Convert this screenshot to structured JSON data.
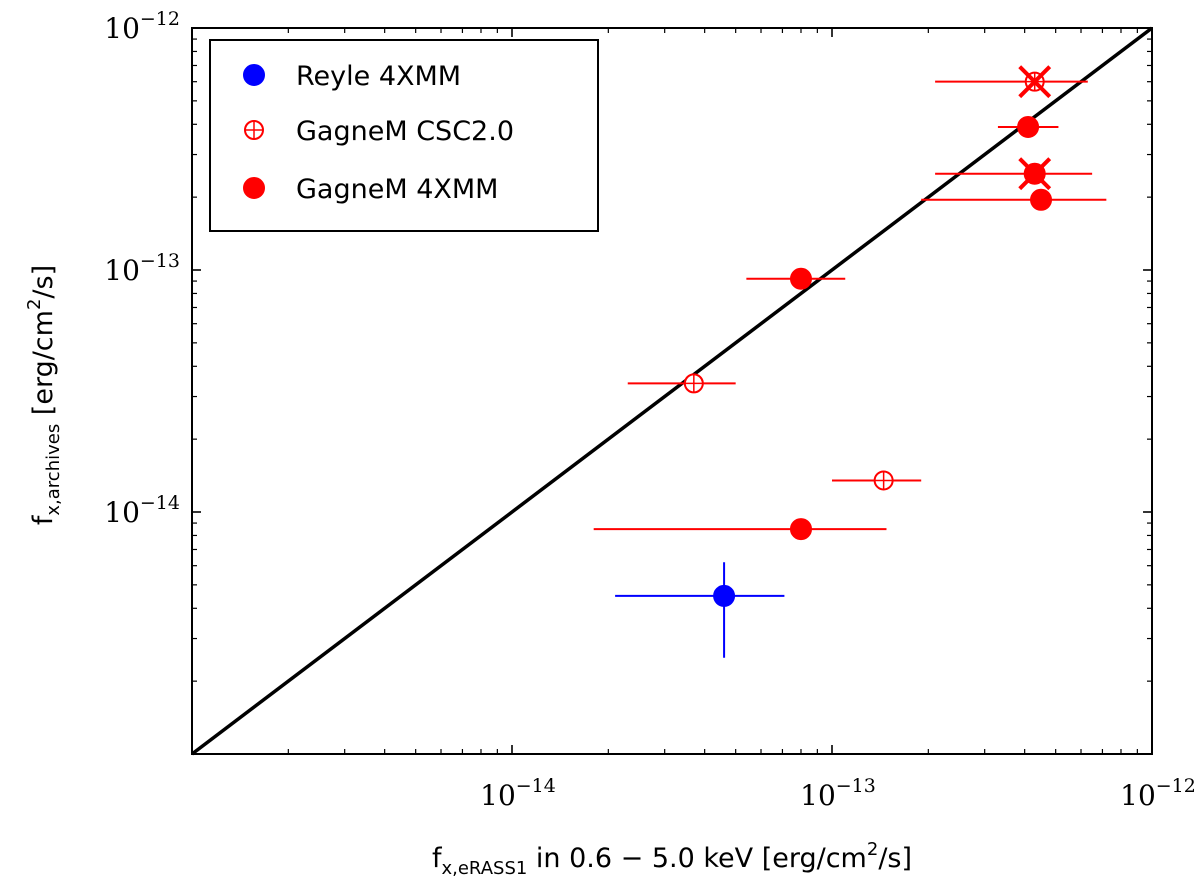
{
  "chart_data": {
    "type": "scatter",
    "title": "",
    "xscale": "log",
    "yscale": "log",
    "xlim": [
      1e-15,
      1e-12
    ],
    "ylim": [
      1e-15,
      1e-12
    ],
    "xticks": [
      {
        "value": 1e-14,
        "base": "10",
        "exp": "−14"
      },
      {
        "value": 1e-13,
        "base": "10",
        "exp": "−13"
      },
      {
        "value": 1e-12,
        "base": "10",
        "exp": "−12"
      }
    ],
    "yticks": [
      {
        "value": 1e-14,
        "base": "10",
        "exp": "−14"
      },
      {
        "value": 1e-13,
        "base": "10",
        "exp": "−13"
      },
      {
        "value": 1e-12,
        "base": "10",
        "exp": "−12"
      }
    ],
    "xlabel": {
      "f": "f",
      "sub": "x,eRASS1",
      "mid": " in 0.6 − 5.0 keV [erg/cm",
      "sup": "2",
      "end": "/s]"
    },
    "ylabel": {
      "f": "f",
      "sub": "x,archives",
      "mid": " [erg/cm",
      "sup": "2",
      "end": "/s]"
    },
    "one_to_one_line": true,
    "legend_position": "top-left",
    "series": [
      {
        "name": "Reyle 4XMM",
        "color": "#0000ff",
        "marker": "filled-circle",
        "points": [
          {
            "x": 4.6e-14,
            "y": 4.5e-15,
            "xerr": [
              2.1e-14,
              7.1e-14
            ],
            "yerr": [
              2.5e-15,
              6.2e-15
            ]
          }
        ]
      },
      {
        "name": "GagneM CSC2.0",
        "color": "#ff0000",
        "marker": "open-circle-plus",
        "points": [
          {
            "x": 3.7e-14,
            "y": 3.4e-14,
            "xerr": [
              2.3e-14,
              5e-14
            ]
          },
          {
            "x": 1.45e-13,
            "y": 1.35e-14,
            "xerr": [
              1e-13,
              1.9e-13
            ]
          },
          {
            "x": 4.3e-13,
            "y": 6e-13
          }
        ]
      },
      {
        "name": "GagneM 4XMM",
        "color": "#ff0000",
        "marker": "filled-circle",
        "points": [
          {
            "x": 8e-14,
            "y": 9.2e-14,
            "xerr": [
              5.4e-14,
              1.1e-13
            ]
          },
          {
            "x": 8e-14,
            "y": 8.5e-15,
            "xerr": [
              1.8e-14,
              1.48e-13
            ]
          },
          {
            "x": 4.1e-13,
            "y": 3.9e-13,
            "xerr": [
              3.3e-13,
              5.1e-13
            ]
          },
          {
            "x": 4.5e-13,
            "y": 1.95e-13,
            "xerr": [
              1.9e-13,
              7.2e-13
            ]
          },
          {
            "x": 4.3e-13,
            "y": 2.5e-13,
            "xerr": [
              2.1e-13,
              6.5e-13
            ]
          }
        ]
      }
    ],
    "cross_markers": [
      {
        "x": 4.3e-13,
        "y": 6e-13,
        "xerr": [
          2.1e-13,
          6.3e-13
        ]
      },
      {
        "x": 4.3e-13,
        "y": 2.5e-13
      }
    ]
  }
}
